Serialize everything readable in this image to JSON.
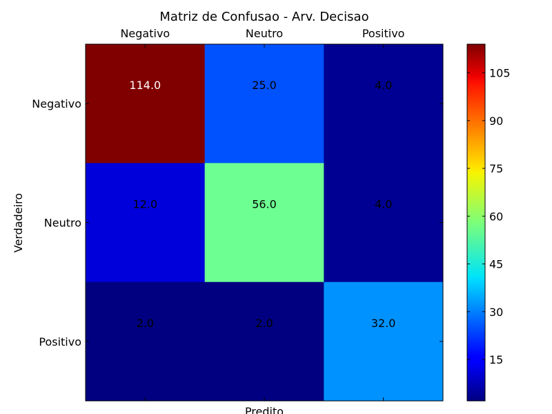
{
  "chart_data": {
    "type": "heatmap",
    "title": "Matriz de Confusao - Arv. Decisao",
    "xlabel": "Predito",
    "ylabel": "Verdadeiro",
    "x_categories": [
      "Negativo",
      "Neutro",
      "Positivo"
    ],
    "y_categories": [
      "Negativo",
      "Neutro",
      "Positivo"
    ],
    "values": [
      [
        114.0,
        25.0,
        4.0
      ],
      [
        12.0,
        56.0,
        4.0
      ],
      [
        2.0,
        2.0,
        32.0
      ]
    ],
    "cell_labels": [
      [
        "114.0",
        "25.0",
        "4.0"
      ],
      [
        "12.0",
        "56.0",
        "4.0"
      ],
      [
        "2.0",
        "2.0",
        "32.0"
      ]
    ],
    "colormap": "jet",
    "vmin": 2.0,
    "vmax": 114.0,
    "colorbar_ticks": [
      15,
      30,
      45,
      60,
      75,
      90,
      105
    ],
    "colorbar_tick_labels": [
      "15",
      "30",
      "45",
      "60",
      "75",
      "90",
      "105"
    ],
    "x_axis_position": "top",
    "grid": false
  }
}
